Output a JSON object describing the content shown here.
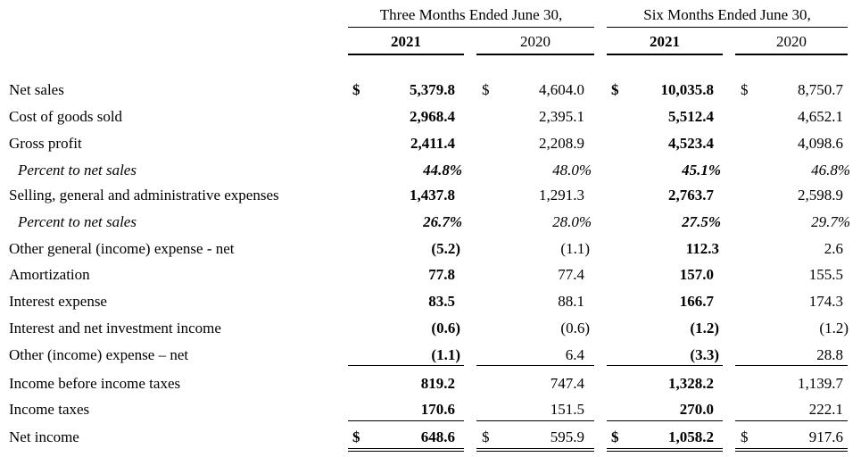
{
  "header": {
    "group_three": "Three Months Ended June 30,",
    "group_six": "Six Months Ended June 30,",
    "col_2021_q": "2021",
    "col_2020_q": "2020",
    "col_2021_s": "2021",
    "col_2020_s": "2020"
  },
  "currency": "$",
  "rows": [
    {
      "label": "Net sales",
      "q21": "5,379.8",
      "q20": "4,604.0",
      "s21": "10,035.8",
      "s20": "8,750.7"
    },
    {
      "label": "Cost of goods sold",
      "q21": "2,968.4",
      "q20": "2,395.1",
      "s21": "5,512.4",
      "s20": "4,652.1"
    },
    {
      "label": "Gross profit",
      "q21": "2,411.4",
      "q20": "2,208.9",
      "s21": "4,523.4",
      "s20": "4,098.6"
    },
    {
      "label": "Percent to net sales",
      "q21": "44.8%",
      "q20": "48.0%",
      "s21": "45.1%",
      "s20": "46.8%"
    },
    {
      "label": "Selling, general and administrative expenses",
      "q21": "1,437.8",
      "q20": "1,291.3",
      "s21": "2,763.7",
      "s20": "2,598.9"
    },
    {
      "label": "Percent to net sales",
      "q21": "26.7%",
      "q20": "28.0%",
      "s21": "27.5%",
      "s20": "29.7%"
    },
    {
      "label": "Other general (income) expense - net",
      "q21": "(5.2)",
      "q20": "(1.1)",
      "s21": "112.3",
      "s20": "2.6"
    },
    {
      "label": "Amortization",
      "q21": "77.8",
      "q20": "77.4",
      "s21": "157.0",
      "s20": "155.5"
    },
    {
      "label": "Interest expense",
      "q21": "83.5",
      "q20": "88.1",
      "s21": "166.7",
      "s20": "174.3"
    },
    {
      "label": "Interest and net investment income",
      "q21": "(0.6)",
      "q20": "(0.6)",
      "s21": "(1.2)",
      "s20": "(1.2)"
    },
    {
      "label": "Other (income) expense – net",
      "q21": "(1.1)",
      "q20": "6.4",
      "s21": "(3.3)",
      "s20": "28.8"
    },
    {
      "label": "Income before income taxes",
      "q21": "819.2",
      "q20": "747.4",
      "s21": "1,328.2",
      "s20": "1,139.7"
    },
    {
      "label": "Income taxes",
      "q21": "170.6",
      "q20": "151.5",
      "s21": "270.0",
      "s20": "222.1"
    },
    {
      "label": "Net income",
      "q21": "648.6",
      "q20": "595.9",
      "s21": "1,058.2",
      "s20": "917.6"
    }
  ]
}
